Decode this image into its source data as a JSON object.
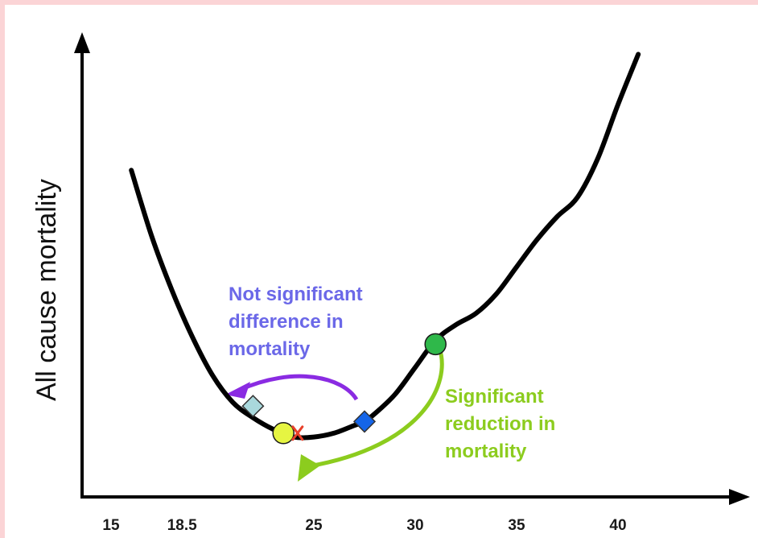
{
  "chart_data": {
    "type": "line",
    "title": "",
    "xlabel": "",
    "ylabel": "All cause mortality",
    "x_ticks": [
      "15",
      "18.5",
      "25",
      "30",
      "35",
      "40"
    ],
    "x_tick_values": [
      15,
      18.5,
      25,
      30,
      35,
      40
    ],
    "xlim": [
      13.8,
      46
    ],
    "grid": false,
    "curve": {
      "x": [
        16.0,
        17.0,
        18.0,
        19.0,
        20.0,
        21.0,
        22.0,
        23.0,
        24.0,
        25.0,
        26.0,
        27.0,
        27.5,
        28.0,
        29.0,
        30.0,
        31.0,
        32.0,
        33.0,
        34.0,
        35.0,
        36.0,
        37.0,
        38.0,
        39.0,
        40.0,
        41.0
      ],
      "y": [
        0.77,
        0.6,
        0.46,
        0.34,
        0.24,
        0.17,
        0.13,
        0.1,
        0.08,
        0.08,
        0.09,
        0.11,
        0.12,
        0.14,
        0.19,
        0.26,
        0.33,
        0.37,
        0.4,
        0.45,
        0.52,
        0.59,
        0.65,
        0.7,
        0.8,
        0.94,
        1.07
      ]
    },
    "markers": [
      {
        "name": "light-blue-diamond",
        "shape": "diamond",
        "color": "#a9d8dc",
        "x": 22.0,
        "y": 0.16
      },
      {
        "name": "yellow-circle",
        "shape": "circle",
        "color": "#e6f542",
        "x": 23.5,
        "y": 0.09
      },
      {
        "name": "red-x",
        "shape": "x",
        "color": "#e8402a",
        "x": 24.2,
        "y": 0.09
      },
      {
        "name": "blue-diamond",
        "shape": "diamond",
        "color": "#1565e8",
        "x": 27.5,
        "y": 0.12
      },
      {
        "name": "green-circle",
        "shape": "circle",
        "color": "#2fb84a",
        "x": 31.0,
        "y": 0.32
      }
    ],
    "annotations": [
      {
        "name": "not-significant",
        "lines": [
          "Not significant",
          "difference in",
          "mortality"
        ],
        "color": "#6b68e8"
      },
      {
        "name": "significant-reduction",
        "lines": [
          "Significant",
          "reduction in",
          "mortality"
        ],
        "color": "#8ccc1e"
      }
    ],
    "colors": {
      "curve": "#000000",
      "purple_arrow": "#8a2be2",
      "green_arrow": "#8ccc1e"
    }
  }
}
